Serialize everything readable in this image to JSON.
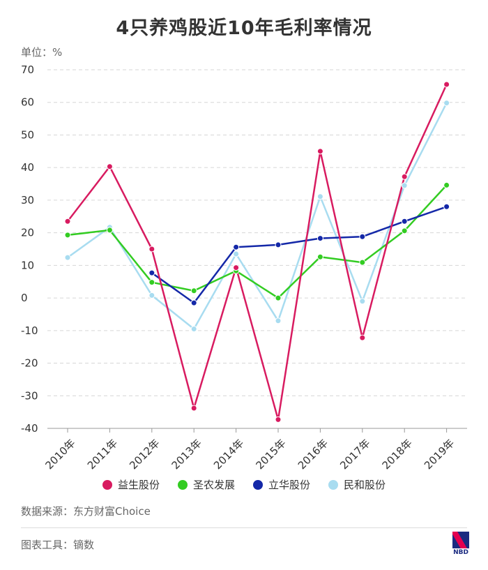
{
  "title": "4只养鸡股近10年毛利率情况",
  "unit_label": "单位：%",
  "source": "数据来源：东方财富Choice",
  "tool": "图表工具：镝数",
  "logo_text": "NBD",
  "chart_data": {
    "type": "line",
    "title": "4只养鸡股近10年毛利率情况",
    "ylabel": "单位：%",
    "xlabel": "",
    "ylim": [
      -40,
      70
    ],
    "yticks": [
      70,
      60,
      50,
      40,
      30,
      20,
      10,
      0,
      -10,
      -20,
      -30,
      -40
    ],
    "categories": [
      "2010年",
      "2011年",
      "2012年",
      "2013年",
      "2014年",
      "2015年",
      "2016年",
      "2017年",
      "2018年",
      "2019年"
    ],
    "grid": true,
    "legend_position": "bottom",
    "series": [
      {
        "name": "益生股份",
        "color": "#d81b60",
        "values": [
          23.5,
          40.3,
          15.0,
          -33.8,
          9.3,
          -37.3,
          45.0,
          -12.2,
          37.2,
          65.5
        ]
      },
      {
        "name": "圣农发展",
        "color": "#33cc22",
        "values": [
          19.3,
          20.8,
          4.8,
          2.2,
          8.3,
          0.0,
          12.6,
          10.9,
          20.6,
          34.6
        ]
      },
      {
        "name": "立华股份",
        "color": "#1428a8",
        "values": [
          null,
          null,
          7.7,
          -1.5,
          15.6,
          16.3,
          18.3,
          18.8,
          23.5,
          28.0
        ]
      },
      {
        "name": "民和股份",
        "color": "#a8dcf0",
        "values": [
          12.4,
          21.7,
          0.8,
          -9.5,
          13.5,
          -7.0,
          31.1,
          -1.0,
          34.5,
          59.8
        ]
      }
    ]
  }
}
